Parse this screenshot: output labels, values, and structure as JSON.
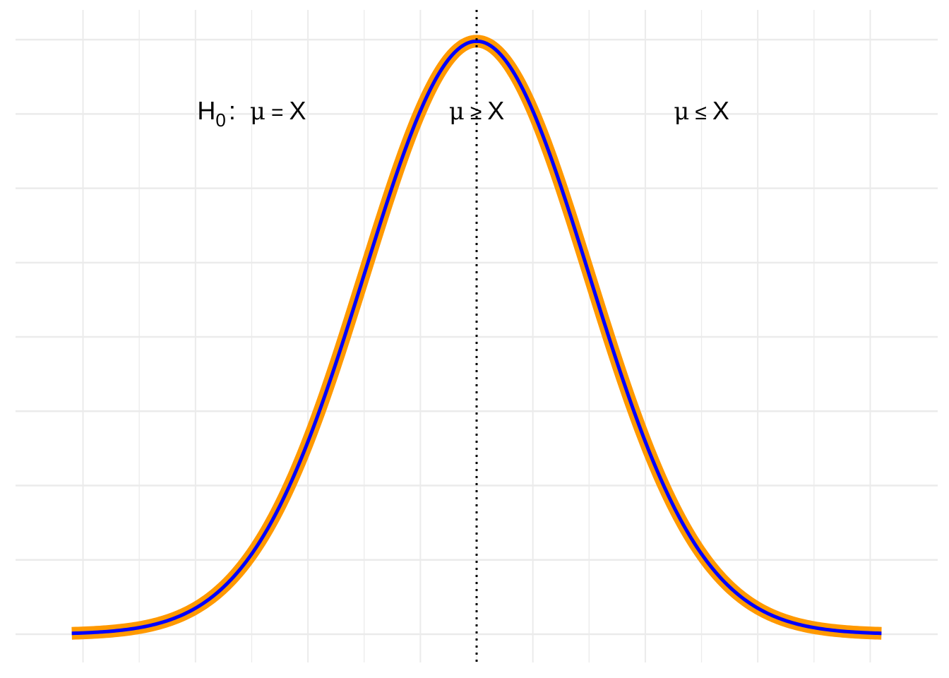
{
  "chart_data": {
    "type": "line",
    "title": "",
    "xlabel": "",
    "ylabel": "",
    "xlim": [
      -4.1,
      4.1
    ],
    "ylim": [
      -0.019,
      0.42
    ],
    "grid": true,
    "distribution": {
      "name": "normal",
      "mean": 0,
      "sd": 1
    },
    "x_range": [
      -3.6,
      3.6
    ],
    "mean_line": {
      "x": 0,
      "style": "dotted",
      "color": "#000000"
    },
    "series": [
      {
        "role": "outline",
        "color": "#FF9900",
        "stroke_width": 18
      },
      {
        "role": "curve",
        "color": "#0000FF",
        "stroke_width": 5
      }
    ],
    "annotations": [
      {
        "id": "h0",
        "prefix": "H",
        "subscript": "0",
        "colon": ":",
        "mu": "μ",
        "op": "=",
        "rhs": "X",
        "x": -2.0,
        "y": 0.352
      },
      {
        "id": "right",
        "mu": "μ",
        "op": "≥",
        "rhs": "X",
        "x": 0.0,
        "y": 0.352
      },
      {
        "id": "left",
        "mu": "μ",
        "op": "≤",
        "rhs": "X",
        "x": 2.0,
        "y": 0.352
      }
    ]
  }
}
